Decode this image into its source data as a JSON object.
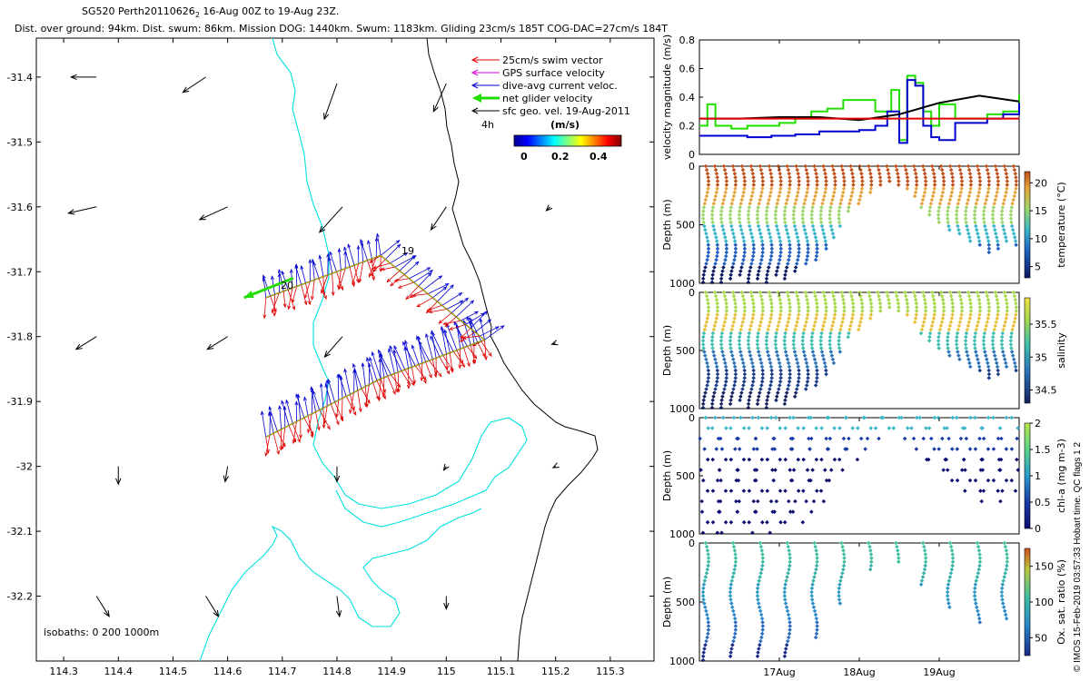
{
  "header": {
    "title_line1": "SG520 Perth20110626",
    "title_line1_sub": "2",
    "title_line1_rest": " 16-Aug 00Z to 19-Aug 23Z.",
    "title_line2": "Dist. over ground: 94km. Dist. swum: 86km. Mission DOG: 1440km. Swum: 1183km. Gliding 23cm/s 185T COG-DAC=27cm/s 184T"
  },
  "copyright": "© IMOS 15-Feb-2019 03:57:33 Hobart time. QC flags 1  2",
  "colors": {
    "swim": "#e00000",
    "gps": "#e000e0",
    "dac": "#0000d0",
    "net": "#22dd00",
    "sfc": "#000000",
    "isobath_200": "#00e0e0"
  },
  "chart_data": [
    {
      "type": "scatter",
      "panel": "map",
      "x_ticks": [
        "114.3",
        "114.4",
        "114.5",
        "114.6",
        "114.7",
        "114.8",
        "114.9",
        "115",
        "115.1",
        "115.2",
        "115.3"
      ],
      "y_ticks": [
        "-31.4",
        "-31.5",
        "-31.6",
        "-31.7",
        "-31.8",
        "-31.9",
        "-32",
        "-32.1",
        "-32.2"
      ],
      "xlim": [
        114.25,
        115.38
      ],
      "ylim": [
        -32.3,
        -31.34
      ],
      "legend": [
        {
          "label": "25cm/s swim vector",
          "color": "#e00000"
        },
        {
          "label": "GPS surface velocity",
          "color": "#e000e0"
        },
        {
          "label": "dive-avg current veloc.",
          "color": "#0000d0"
        },
        {
          "label": "net glider velocity",
          "color": "#22dd00"
        },
        {
          "label": "sfc geo. vel. 19-Aug-2011",
          "color": "#000000"
        }
      ],
      "legend_placement": "top-right",
      "time_step_label": "4h",
      "colorbar": {
        "title": "(m/s)",
        "ticks": [
          "0",
          "0.2",
          "0.4"
        ],
        "range": [
          0,
          0.5
        ]
      },
      "isobath_label": "isobaths: 0   200   1000m",
      "day_labels": [
        {
          "text": "19",
          "lon": 114.895,
          "lat": -31.685
        },
        {
          "text": "20",
          "lon": 114.695,
          "lat": -31.745
        }
      ],
      "track": [
        {
          "lon": 114.67,
          "lat": -31.955
        },
        {
          "lon": 114.88,
          "lat": -31.865
        },
        {
          "lon": 115.07,
          "lat": -31.805
        },
        {
          "lon": 114.88,
          "lat": -31.675
        },
        {
          "lon": 114.67,
          "lat": -31.74
        }
      ],
      "net_velocity_arrow": {
        "from_lon": 114.72,
        "from_lat": -31.71,
        "to_lon": 114.63,
        "to_lat": -31.74
      },
      "sfc_vectors": [
        {
          "lon": 114.36,
          "lat": -31.4,
          "u": -0.2,
          "v": 0.0
        },
        {
          "lon": 114.56,
          "lat": -31.4,
          "u": -0.18,
          "v": -0.12
        },
        {
          "lon": 114.8,
          "lat": -31.41,
          "u": -0.1,
          "v": -0.28
        },
        {
          "lon": 115.0,
          "lat": -31.41,
          "u": -0.1,
          "v": -0.22
        },
        {
          "lon": 114.36,
          "lat": -31.6,
          "u": -0.22,
          "v": -0.05
        },
        {
          "lon": 114.6,
          "lat": -31.6,
          "u": -0.22,
          "v": -0.1
        },
        {
          "lon": 114.81,
          "lat": -31.6,
          "u": -0.18,
          "v": -0.2
        },
        {
          "lon": 115.0,
          "lat": -31.6,
          "u": -0.12,
          "v": -0.18
        },
        {
          "lon": 115.19,
          "lat": -31.6,
          "u": -0.03,
          "v": -0.03
        },
        {
          "lon": 114.36,
          "lat": -31.8,
          "u": -0.16,
          "v": -0.1
        },
        {
          "lon": 114.6,
          "lat": -31.8,
          "u": -0.16,
          "v": -0.1
        },
        {
          "lon": 114.81,
          "lat": -31.8,
          "u": -0.14,
          "v": -0.16
        },
        {
          "lon": 115.2,
          "lat": -31.81,
          "u": -0.03,
          "v": -0.01
        },
        {
          "lon": 114.4,
          "lat": -32.0,
          "u": 0.0,
          "v": -0.14
        },
        {
          "lon": 114.6,
          "lat": -32.0,
          "u": -0.02,
          "v": -0.12
        },
        {
          "lon": 114.8,
          "lat": -32.0,
          "u": 0.0,
          "v": -0.12
        },
        {
          "lon": 115.0,
          "lat": -32.0,
          "u": -0.02,
          "v": -0.03
        },
        {
          "lon": 115.2,
          "lat": -32.0,
          "u": -0.02,
          "v": -0.01
        },
        {
          "lon": 114.36,
          "lat": -32.2,
          "u": 0.1,
          "v": -0.16
        },
        {
          "lon": 114.56,
          "lat": -32.2,
          "u": 0.1,
          "v": -0.16
        },
        {
          "lon": 114.8,
          "lat": -32.2,
          "u": 0.02,
          "v": -0.16
        },
        {
          "lon": 115.0,
          "lat": -32.2,
          "u": 0.0,
          "v": -0.1
        }
      ]
    },
    {
      "type": "line",
      "panel": "velocity",
      "ylabel": "velocity magnitude (m/s)",
      "ylim": [
        0,
        0.8
      ],
      "y_ticks": [
        "0",
        "0.2",
        "0.4",
        "0.6",
        "0.8"
      ],
      "x_range_days": [
        16.0,
        20.0
      ],
      "series": [
        {
          "color": "#22dd00",
          "x": [
            16.0,
            16.1,
            16.2,
            16.4,
            16.6,
            16.8,
            17.0,
            17.2,
            17.4,
            17.6,
            17.8,
            18.0,
            18.2,
            18.4,
            18.5,
            18.6,
            18.7,
            18.8,
            18.9,
            19.0,
            19.2,
            19.4,
            19.6,
            19.8,
            20.0
          ],
          "values": [
            0.2,
            0.35,
            0.2,
            0.18,
            0.2,
            0.2,
            0.22,
            0.25,
            0.3,
            0.32,
            0.38,
            0.38,
            0.3,
            0.45,
            0.1,
            0.55,
            0.5,
            0.3,
            0.2,
            0.35,
            0.25,
            0.25,
            0.28,
            0.3,
            0.42
          ]
        },
        {
          "color": "#0000d0",
          "x": [
            16.0,
            16.3,
            16.6,
            16.9,
            17.2,
            17.5,
            17.8,
            18.0,
            18.2,
            18.35,
            18.5,
            18.6,
            18.7,
            18.8,
            18.9,
            19.0,
            19.2,
            19.4,
            19.6,
            19.8,
            20.0
          ],
          "values": [
            0.13,
            0.13,
            0.12,
            0.13,
            0.14,
            0.16,
            0.16,
            0.17,
            0.2,
            0.3,
            0.08,
            0.52,
            0.48,
            0.2,
            0.12,
            0.1,
            0.22,
            0.22,
            0.25,
            0.28,
            0.36
          ]
        },
        {
          "color": "#000000",
          "x": [
            16.0,
            16.5,
            17.0,
            17.5,
            18.0,
            18.5,
            19.0,
            19.5,
            20.0
          ],
          "values": [
            0.25,
            0.25,
            0.26,
            0.26,
            0.24,
            0.28,
            0.36,
            0.41,
            0.37
          ]
        },
        {
          "color": "#e00000",
          "x": [
            16.0,
            20.0
          ],
          "values": [
            0.25,
            0.25
          ]
        }
      ]
    },
    {
      "type": "scatter",
      "panel": "temperature",
      "ylabel": "Depth (m)",
      "clabel": "temperature (°C)",
      "ylim": [
        1000,
        0
      ],
      "y_ticks": [
        "0",
        "500",
        "1000"
      ],
      "colorbar_ticks": [
        "5",
        "10",
        "15",
        "20"
      ],
      "crange": [
        3,
        22
      ],
      "deep_pattern": [
        1000,
        1000,
        1000,
        980,
        950,
        1000,
        980,
        1000,
        950,
        980,
        900,
        860,
        800,
        720,
        620,
        520,
        400,
        320,
        240,
        180,
        150,
        160,
        200,
        260,
        380,
        420,
        480,
        560,
        600,
        640,
        700,
        740,
        720,
        640,
        700
      ],
      "shallow_region": {
        "from_day": 18.0,
        "to_day": 18.5,
        "depth": 200
      }
    },
    {
      "type": "scatter",
      "panel": "salinity",
      "ylabel": "Depth (m)",
      "clabel": "salinity",
      "ylim": [
        1000,
        0
      ],
      "y_ticks": [
        "0",
        "500",
        "1000"
      ],
      "colorbar_ticks": [
        "34.5",
        "35",
        "35.5"
      ],
      "crange": [
        34.3,
        35.9
      ]
    },
    {
      "type": "scatter",
      "panel": "chl",
      "ylabel": "Depth (m)",
      "clabel": "chl-a (mg m-3)",
      "ylim": [
        1000,
        0
      ],
      "y_ticks": [
        "0",
        "500",
        "1000"
      ],
      "colorbar_ticks": [
        "0",
        "0.5",
        "1",
        "1.5",
        "2"
      ],
      "crange": [
        0,
        2
      ]
    },
    {
      "type": "scatter",
      "panel": "oxygen",
      "ylabel": "Depth (m)",
      "clabel": "Ox. sat. ratio (%)",
      "ylim": [
        1000,
        0
      ],
      "y_ticks": [
        "0",
        "500",
        "1000"
      ],
      "colorbar_ticks": [
        "50",
        "100",
        "150"
      ],
      "crange": [
        25,
        175
      ],
      "x_ticks": [
        "17Aug",
        "18Aug",
        "19Aug"
      ],
      "x_tick_days": [
        17,
        18,
        19
      ]
    }
  ]
}
